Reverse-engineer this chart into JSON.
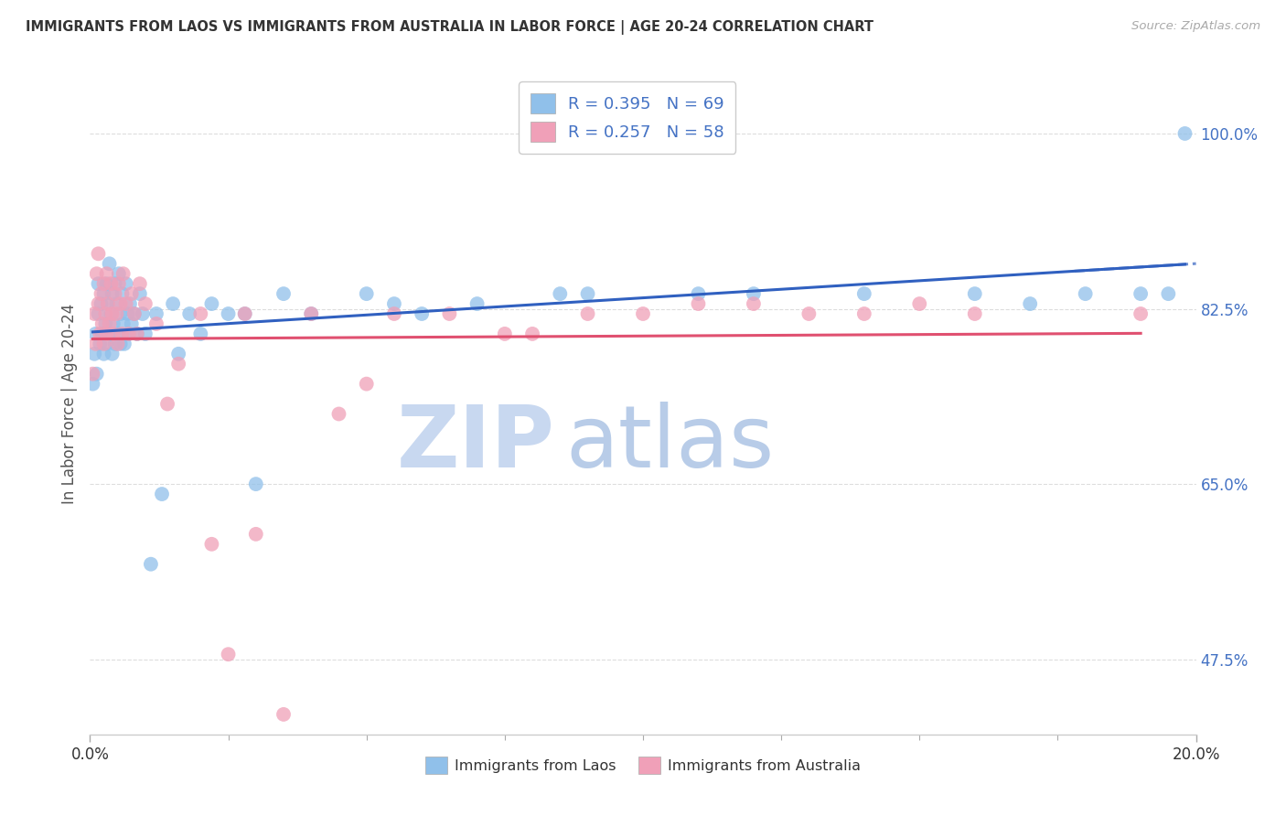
{
  "title": "IMMIGRANTS FROM LAOS VS IMMIGRANTS FROM AUSTRALIA IN LABOR FORCE | AGE 20-24 CORRELATION CHART",
  "source_text": "Source: ZipAtlas.com",
  "ylabel": "In Labor Force | Age 20-24",
  "legend_label_blue": "Immigrants from Laos",
  "legend_label_pink": "Immigrants from Australia",
  "R_blue": 0.395,
  "N_blue": 69,
  "R_pink": 0.257,
  "N_pink": 58,
  "xlim": [
    0.0,
    20.0
  ],
  "ylim": [
    40.0,
    106.0
  ],
  "yticks": [
    47.5,
    65.0,
    82.5,
    100.0
  ],
  "yticklabels": [
    "47.5%",
    "65.0%",
    "82.5%",
    "100.0%"
  ],
  "color_blue": "#90C0EA",
  "color_pink": "#F0A0B8",
  "color_blue_line": "#3060C0",
  "color_pink_line": "#E05070",
  "color_text_blue": "#4472C4",
  "watermark_zip": "ZIP",
  "watermark_atlas": "atlas",
  "watermark_color": "#C8D8F0",
  "blue_x": [
    0.05,
    0.08,
    0.1,
    0.12,
    0.15,
    0.15,
    0.18,
    0.2,
    0.22,
    0.25,
    0.25,
    0.28,
    0.3,
    0.3,
    0.32,
    0.35,
    0.35,
    0.38,
    0.4,
    0.4,
    0.42,
    0.45,
    0.45,
    0.48,
    0.5,
    0.52,
    0.55,
    0.55,
    0.58,
    0.6,
    0.62,
    0.65,
    0.68,
    0.7,
    0.72,
    0.75,
    0.8,
    0.85,
    0.9,
    0.95,
    1.0,
    1.1,
    1.2,
    1.3,
    1.5,
    1.6,
    1.8,
    2.0,
    2.2,
    2.5,
    2.8,
    3.0,
    3.5,
    4.0,
    5.0,
    5.5,
    6.0,
    7.0,
    8.5,
    9.0,
    11.0,
    12.0,
    14.0,
    16.0,
    17.0,
    18.0,
    19.0,
    19.5,
    19.8
  ],
  "blue_y": [
    75.0,
    78.0,
    80.0,
    76.0,
    82.0,
    85.0,
    79.0,
    83.0,
    80.0,
    78.0,
    84.0,
    81.0,
    79.0,
    85.0,
    83.0,
    80.0,
    87.0,
    82.0,
    78.0,
    84.0,
    81.0,
    79.0,
    85.0,
    83.0,
    80.0,
    86.0,
    82.0,
    79.0,
    84.0,
    81.0,
    79.0,
    85.0,
    82.0,
    80.0,
    83.0,
    81.0,
    82.0,
    80.0,
    84.0,
    82.0,
    80.0,
    57.0,
    82.0,
    64.0,
    83.0,
    78.0,
    82.0,
    80.0,
    83.0,
    82.0,
    82.0,
    65.0,
    84.0,
    82.0,
    84.0,
    83.0,
    82.0,
    83.0,
    84.0,
    84.0,
    84.0,
    84.0,
    84.0,
    84.0,
    83.0,
    84.0,
    84.0,
    84.0,
    100.0
  ],
  "pink_x": [
    0.05,
    0.08,
    0.1,
    0.12,
    0.15,
    0.15,
    0.18,
    0.2,
    0.22,
    0.25,
    0.25,
    0.28,
    0.3,
    0.3,
    0.32,
    0.35,
    0.38,
    0.4,
    0.42,
    0.45,
    0.48,
    0.5,
    0.52,
    0.55,
    0.58,
    0.6,
    0.65,
    0.7,
    0.75,
    0.8,
    0.85,
    0.9,
    1.0,
    1.2,
    1.4,
    1.6,
    2.0,
    2.2,
    2.5,
    2.8,
    3.0,
    3.5,
    4.0,
    4.5,
    5.0,
    5.5,
    6.5,
    7.5,
    8.0,
    9.0,
    10.0,
    11.0,
    12.0,
    13.0,
    14.0,
    15.0,
    16.0,
    19.0
  ],
  "pink_y": [
    76.0,
    82.0,
    79.0,
    86.0,
    83.0,
    88.0,
    80.0,
    84.0,
    81.0,
    79.0,
    85.0,
    82.0,
    80.0,
    86.0,
    83.0,
    81.0,
    85.0,
    82.0,
    80.0,
    84.0,
    82.0,
    79.0,
    85.0,
    83.0,
    80.0,
    86.0,
    83.0,
    80.0,
    84.0,
    82.0,
    80.0,
    85.0,
    83.0,
    81.0,
    73.0,
    77.0,
    82.0,
    59.0,
    48.0,
    82.0,
    60.0,
    42.0,
    82.0,
    72.0,
    75.0,
    82.0,
    82.0,
    80.0,
    80.0,
    82.0,
    82.0,
    83.0,
    83.0,
    82.0,
    82.0,
    83.0,
    82.0,
    82.0
  ]
}
